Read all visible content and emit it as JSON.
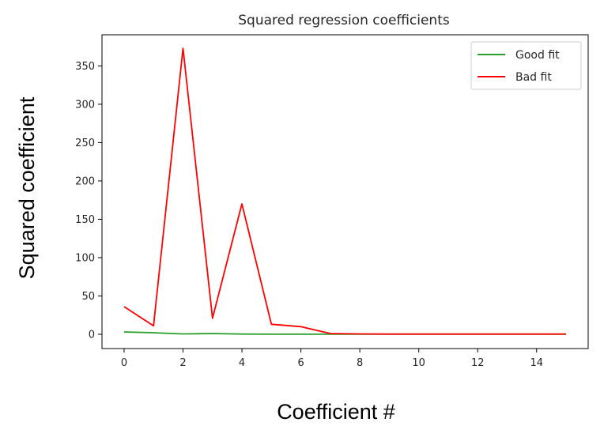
{
  "chart_data": {
    "type": "line",
    "title": "Squared regression coefficients",
    "xlabel": "Coefficient #",
    "ylabel": "Squared coefficient",
    "xlim": [
      -0.75,
      15.75
    ],
    "ylim": [
      -18.6,
      390.6
    ],
    "x_ticks": [
      0,
      2,
      4,
      6,
      8,
      10,
      12,
      14
    ],
    "y_ticks": [
      0,
      50,
      100,
      150,
      200,
      250,
      300,
      350
    ],
    "grid": false,
    "legend_position": "top-right",
    "x": [
      0,
      1,
      2,
      3,
      4,
      5,
      6,
      7,
      8,
      9,
      10,
      11,
      12,
      13,
      14,
      15
    ],
    "series": [
      {
        "name": "Good fit",
        "color": "#2ca02c",
        "values": [
          3,
          2,
          0.5,
          1,
          0.3,
          0.2,
          0.2,
          0.1,
          0.1,
          0.1,
          0.1,
          0.1,
          0.1,
          0.1,
          0.1,
          0.1
        ]
      },
      {
        "name": "Bad fit",
        "color": "#ff0000",
        "values": [
          36,
          11,
          373,
          21,
          170,
          13,
          10,
          1,
          0.5,
          0.3,
          0.3,
          0.3,
          0.3,
          0.3,
          0.3,
          0.3
        ]
      }
    ]
  }
}
